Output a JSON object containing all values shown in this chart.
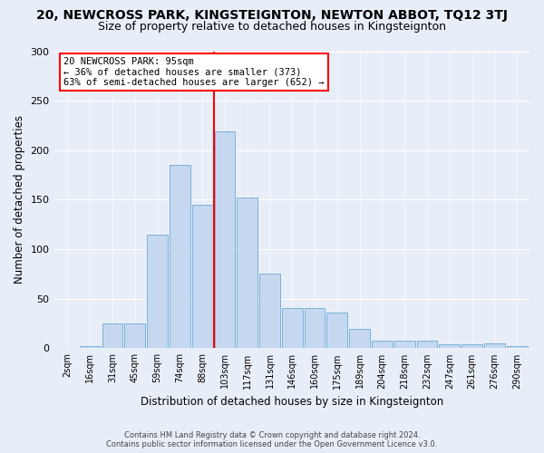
{
  "title": "20, NEWCROSS PARK, KINGSTEIGNTON, NEWTON ABBOT, TQ12 3TJ",
  "subtitle": "Size of property relative to detached houses in Kingsteignton",
  "xlabel": "Distribution of detached houses by size in Kingsteignton",
  "ylabel": "Number of detached properties",
  "footnote1": "Contains HM Land Registry data © Crown copyright and database right 2024.",
  "footnote2": "Contains public sector information licensed under the Open Government Licence v3.0.",
  "categories": [
    "2sqm",
    "16sqm",
    "31sqm",
    "45sqm",
    "59sqm",
    "74sqm",
    "88sqm",
    "103sqm",
    "117sqm",
    "131sqm",
    "146sqm",
    "160sqm",
    "175sqm",
    "189sqm",
    "204sqm",
    "218sqm",
    "232sqm",
    "247sqm",
    "261sqm",
    "276sqm",
    "290sqm"
  ],
  "values": [
    0,
    2,
    25,
    25,
    115,
    185,
    145,
    219,
    152,
    75,
    41,
    41,
    36,
    20,
    8,
    8,
    8,
    4,
    4,
    5,
    2
  ],
  "bar_color": "#c5d8f0",
  "bar_edge_color": "#6aaad4",
  "vline_x_idx": 7,
  "vline_color": "red",
  "annotation_title": "20 NEWCROSS PARK: 95sqm",
  "annotation_line1": "← 36% of detached houses are smaller (373)",
  "annotation_line2": "63% of semi-detached houses are larger (652) →",
  "annotation_box_color": "#ffffff",
  "annotation_box_edge": "red",
  "ylim": [
    0,
    300
  ],
  "yticks": [
    0,
    50,
    100,
    150,
    200,
    250,
    300
  ],
  "background_color": "#e8eef8",
  "plot_bg_color": "#e8eef8",
  "title_fontsize": 10,
  "subtitle_fontsize": 9
}
